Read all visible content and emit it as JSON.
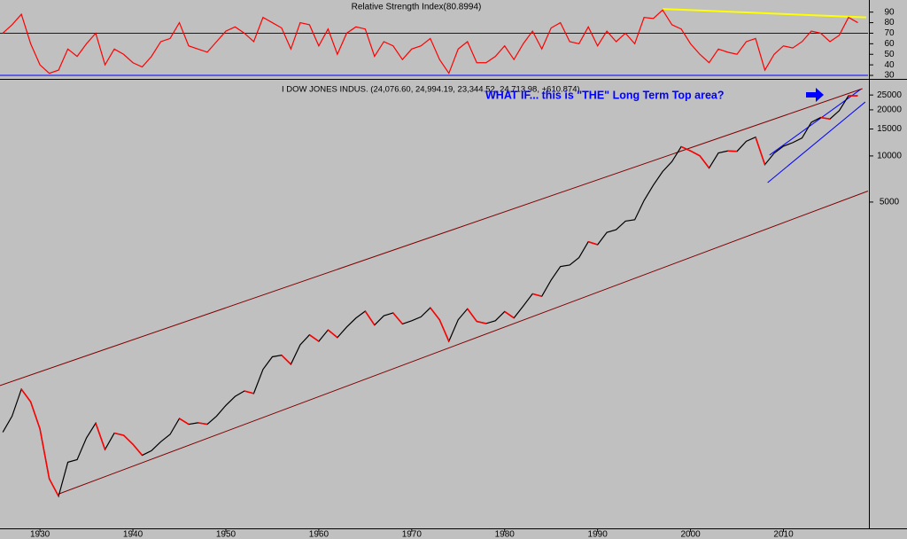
{
  "chart_data": [
    {
      "type": "line",
      "title": "Relative Strength Index(80.8994)",
      "x": [
        1926,
        1927,
        1928,
        1929,
        1930,
        1931,
        1932,
        1933,
        1934,
        1935,
        1936,
        1937,
        1938,
        1939,
        1940,
        1941,
        1942,
        1943,
        1944,
        1945,
        1946,
        1947,
        1948,
        1949,
        1950,
        1951,
        1952,
        1953,
        1954,
        1955,
        1956,
        1957,
        1958,
        1959,
        1960,
        1961,
        1962,
        1963,
        1964,
        1965,
        1966,
        1967,
        1968,
        1969,
        1970,
        1971,
        1972,
        1973,
        1974,
        1975,
        1976,
        1977,
        1978,
        1979,
        1980,
        1981,
        1982,
        1983,
        1984,
        1985,
        1986,
        1987,
        1988,
        1989,
        1990,
        1991,
        1992,
        1993,
        1994,
        1995,
        1996,
        1997,
        1998,
        1999,
        2000,
        2001,
        2002,
        2003,
        2004,
        2005,
        2006,
        2007,
        2008,
        2009,
        2010,
        2011,
        2012,
        2013,
        2014,
        2015,
        2016,
        2017,
        2018
      ],
      "values": [
        70,
        78,
        88,
        60,
        40,
        32,
        35,
        55,
        48,
        60,
        70,
        40,
        55,
        50,
        42,
        38,
        48,
        62,
        65,
        80,
        58,
        55,
        52,
        62,
        72,
        76,
        70,
        62,
        85,
        80,
        75,
        55,
        80,
        78,
        58,
        74,
        50,
        70,
        76,
        74,
        48,
        62,
        58,
        45,
        55,
        58,
        65,
        45,
        32,
        55,
        62,
        42,
        42,
        48,
        58,
        45,
        60,
        72,
        55,
        75,
        80,
        62,
        60,
        76,
        58,
        72,
        62,
        70,
        60,
        85,
        84,
        92,
        78,
        74,
        60,
        50,
        42,
        55,
        52,
        50,
        62,
        65,
        35,
        50,
        58,
        56,
        62,
        72,
        70,
        62,
        68,
        85,
        80
      ],
      "color": "#ff0000",
      "xlim": [
        1925.7,
        2019.1
      ],
      "ylim": [
        27.5,
        101.5
      ],
      "yticks": [
        30,
        40,
        50,
        60,
        70,
        80,
        90
      ],
      "reference_lines": [
        70,
        30
      ],
      "reference_color": "#0000ff",
      "trendlines": [
        {
          "x": [
            1997,
            2018.9
          ],
          "y": [
            93,
            85
          ],
          "color": "#ffff00"
        }
      ]
    },
    {
      "type": "line",
      "title": "I DOW JONES INDUS. (24,076.60, 24,994.19, 23,344.52, 24,713.98, +610.874)",
      "annotation": "WHAT IF... this is \"THE\" Long Term Top area?",
      "log_scale": true,
      "x": [
        1926,
        1927,
        1928,
        1929,
        1930,
        1931,
        1932,
        1933,
        1934,
        1935,
        1936,
        1937,
        1938,
        1939,
        1940,
        1941,
        1942,
        1943,
        1944,
        1945,
        1946,
        1947,
        1948,
        1949,
        1950,
        1951,
        1952,
        1953,
        1954,
        1955,
        1956,
        1957,
        1958,
        1959,
        1960,
        1961,
        1962,
        1963,
        1964,
        1965,
        1966,
        1967,
        1968,
        1969,
        1970,
        1971,
        1972,
        1973,
        1974,
        1975,
        1976,
        1977,
        1978,
        1979,
        1980,
        1981,
        1982,
        1983,
        1984,
        1985,
        1986,
        1987,
        1988,
        1989,
        1990,
        1991,
        1992,
        1993,
        1994,
        1995,
        1996,
        1997,
        1998,
        1999,
        2000,
        2001,
        2002,
        2003,
        2004,
        2005,
        2006,
        2007,
        2008,
        2009,
        2010,
        2011,
        2012,
        2013,
        2014,
        2015,
        2016,
        2017,
        2018
      ],
      "values": [
        157,
        200,
        300,
        248,
        165,
        78,
        60,
        100,
        104,
        144,
        180,
        121,
        155,
        150,
        131,
        111,
        119,
        136,
        152,
        193,
        177,
        181,
        177,
        200,
        235,
        269,
        292,
        281,
        404,
        488,
        500,
        436,
        584,
        679,
        616,
        731,
        652,
        763,
        874,
        969,
        786,
        905,
        944,
        800,
        839,
        890,
        1020,
        851,
        616,
        852,
        1005,
        831,
        805,
        839,
        964,
        875,
        1047,
        1259,
        1212,
        1547,
        1896,
        1939,
        2169,
        2753,
        2634,
        3169,
        3301,
        3754,
        3834,
        5117,
        6448,
        7908,
        9181,
        11497,
        10787,
        10022,
        8342,
        10454,
        10783,
        10718,
        12463,
        13265,
        8776,
        10428,
        11578,
        12218,
        13104,
        16577,
        17823,
        17425,
        19763,
        24719,
        24714
      ],
      "color": "#000000",
      "down_color": "#ff0000",
      "xlim": [
        1925.7,
        2019.1
      ],
      "xticks": [
        1930,
        1940,
        1950,
        1960,
        1970,
        1980,
        1990,
        2000,
        2010
      ],
      "ylim": [
        37,
        30600
      ],
      "yticks": [
        5000,
        10000,
        15000,
        20000,
        25000
      ],
      "trendlines": [
        {
          "x": [
            1925.7,
            2018.5
          ],
          "y": [
            317,
            27500
          ],
          "color": "#800000"
        },
        {
          "x": [
            1932,
            2019.1
          ],
          "y": [
            62,
            5900
          ],
          "color": "#800000"
        },
        {
          "x": [
            2008.3,
            2018.8
          ],
          "y": [
            6700,
            22500
          ],
          "color": "#0000ff"
        },
        {
          "x": [
            2008.5,
            2018.3
          ],
          "y": [
            10130,
            27200
          ],
          "color": "#0000ff"
        }
      ]
    }
  ]
}
